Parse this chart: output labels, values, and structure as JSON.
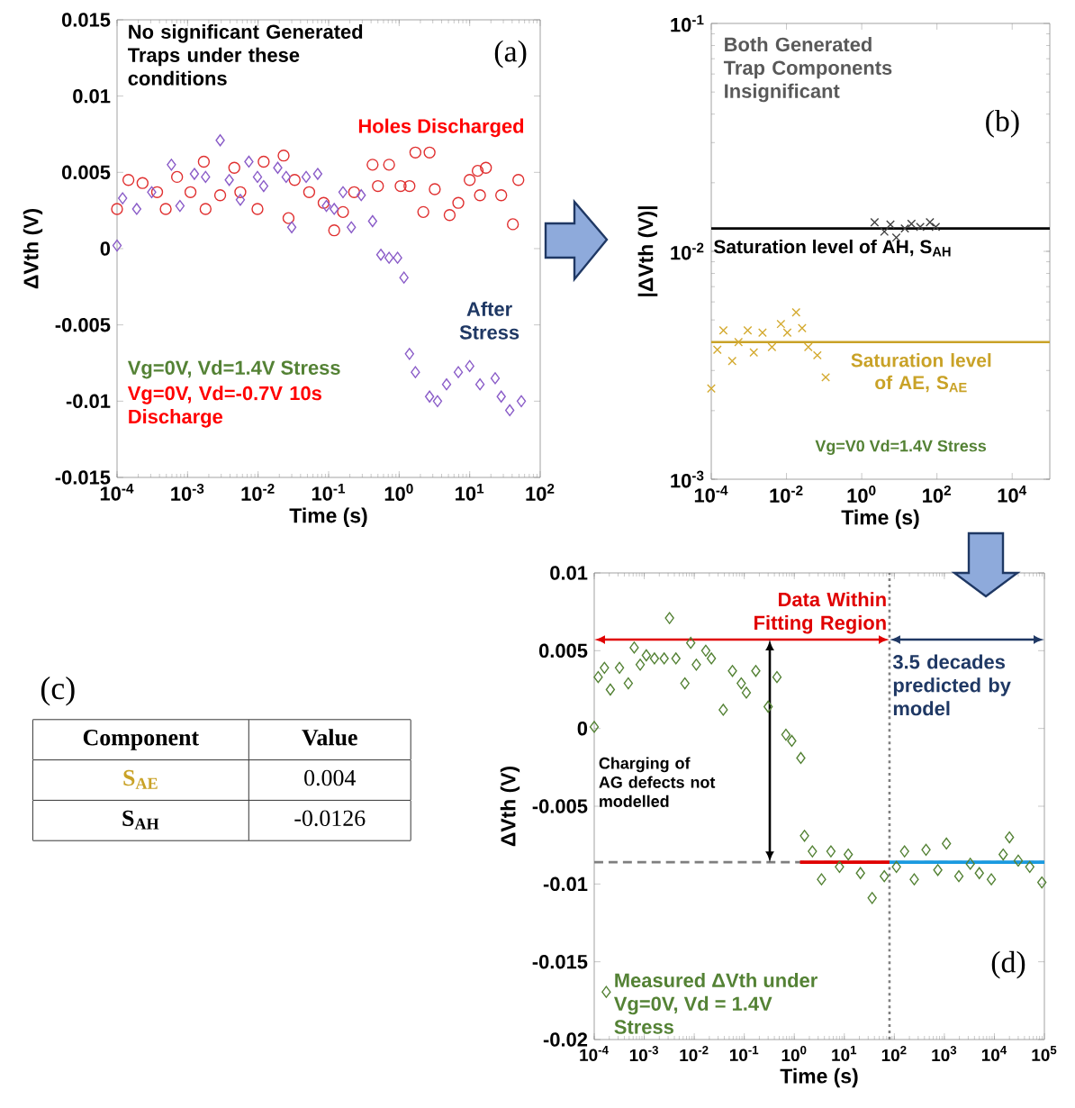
{
  "chart_data": [
    {
      "type": "scatter",
      "xlabel": "Time (s)",
      "ylabel": "ΔVth (V)",
      "log": "x",
      "xlim": [
        0.0001,
        100
      ],
      "xticks": [
        {
          "value": 0.0001,
          "label": "10$^{-4}$"
        },
        {
          "value": 0.001,
          "label": "10$^{-3}$"
        },
        {
          "value": 0.01,
          "label": "10$^{-2}$"
        },
        {
          "value": 0.1,
          "label": "10$^{-1}$"
        },
        {
          "value": 1,
          "label": "10$^{0}$"
        },
        {
          "value": 10,
          "label": "10$^{1}$"
        },
        {
          "value": 100,
          "label": "10$^{2}$"
        }
      ],
      "ylim": [
        -0.015,
        0.015
      ],
      "yticks": [
        -0.015,
        -0.01,
        -0.005,
        0,
        0.005,
        0.01,
        0.015
      ],
      "series": [
        {
          "name": "Holes Discharged",
          "color": "#e03030",
          "marker": "circle",
          "x": [
            0.0001,
            0.000145,
            0.00023,
            0.00037,
            0.00049,
            0.00071,
            0.0011,
            0.0017,
            0.0018,
            0.0029,
            0.0046,
            0.0056,
            0.0098,
            0.012,
            0.023,
            0.027,
            0.033,
            0.053,
            0.085,
            0.12,
            0.16,
            0.23,
            0.42,
            0.5,
            0.72,
            1.05,
            1.4,
            1.7,
            2.2,
            2.7,
            3.2,
            5.2,
            6.9,
            10,
            13,
            14,
            17,
            28,
            41,
            49
          ],
          "values": [
            0.0026,
            0.0045,
            0.0043,
            0.0037,
            0.0026,
            0.0047,
            0.0037,
            0.0057,
            0.0026,
            0.0035,
            0.0053,
            0.0037,
            0.0026,
            0.0057,
            0.0061,
            0.002,
            0.0045,
            0.0037,
            0.003,
            0.0012,
            0.0024,
            0.0037,
            0.0055,
            0.0041,
            0.0055,
            0.0041,
            0.0041,
            0.0063,
            0.0024,
            0.0063,
            0.0039,
            0.0022,
            0.003,
            0.0045,
            0.0051,
            0.0035,
            0.0053,
            0.0035,
            0.0016,
            0.0045
          ]
        },
        {
          "name": "After Stress",
          "color": "#8a5cc8",
          "marker": "diamond",
          "x": [
            0.0001,
            0.00012,
            0.00019,
            0.00031,
            0.00059,
            0.00078,
            0.00125,
            0.0018,
            0.0029,
            0.0039,
            0.0056,
            0.0074,
            0.0098,
            0.012,
            0.019,
            0.025,
            0.03,
            0.048,
            0.07,
            0.093,
            0.12,
            0.16,
            0.21,
            0.29,
            0.42,
            0.55,
            0.72,
            0.95,
            1.17,
            1.4,
            1.7,
            2.7,
            3.5,
            4.7,
            6.9,
            10,
            14,
            23,
            28,
            37,
            54
          ],
          "values": [
            0.0002,
            0.0033,
            0.0026,
            0.0037,
            0.0055,
            0.0028,
            0.0049,
            0.0047,
            0.0071,
            0.0045,
            0.0032,
            0.0057,
            0.0047,
            0.0041,
            0.0053,
            0.0047,
            0.0014,
            0.0047,
            0.0049,
            0.0028,
            0.0026,
            0.0037,
            0.0014,
            0.0035,
            0.0018,
            -0.0004,
            -0.0006,
            -0.0006,
            -0.0019,
            -0.0069,
            -0.0081,
            -0.0097,
            -0.01,
            -0.0089,
            -0.0081,
            -0.0077,
            -0.0089,
            -0.0085,
            -0.0097,
            -0.0106,
            -0.01
          ]
        }
      ],
      "annotations": [
        "(a)",
        "No significant Generated Traps under these conditions",
        "Vg=0V, Vd=1.4V Stress",
        "Vg=0V, Vd=-0.7V 10s Discharge"
      ]
    },
    {
      "type": "scatter",
      "xlabel": "Time (s)",
      "ylabel": "|ΔVth (V)|",
      "log": "xy",
      "xlim": [
        0.0001,
        100000
      ],
      "xticks": [
        {
          "value": 0.0001,
          "label": "10$^{-4}$"
        },
        {
          "value": 0.01,
          "label": "10$^{-2}$"
        },
        {
          "value": 1,
          "label": "10$^{0}$"
        },
        {
          "value": 100,
          "label": "10$^{2}$"
        },
        {
          "value": 10000,
          "label": "10$^{4}$"
        }
      ],
      "ylim": [
        0.001,
        0.1
      ],
      "yticks": [
        {
          "value": 0.001,
          "label": "10$^{-3}$"
        },
        {
          "value": 0.01,
          "label": "10$^{-2}$"
        },
        {
          "value": 0.1,
          "label": "10$^{-1}$"
        }
      ],
      "series": [
        {
          "color": "#d4aa30",
          "marker": "cross",
          "x": [
            0.0001,
            0.000145,
            0.00021,
            0.00036,
            0.00053,
            0.00093,
            0.00135,
            0.0023,
            0.0041,
            0.0071,
            0.0105,
            0.018,
            0.026,
            0.038,
            0.066,
            0.11
          ],
          "values": [
            0.0025,
            0.0037,
            0.0045,
            0.0033,
            0.004,
            0.0045,
            0.0036,
            0.0044,
            0.0038,
            0.0048,
            0.0044,
            0.0054,
            0.0046,
            0.0038,
            0.0035,
            0.0028
          ]
        },
        {
          "color": "#404040",
          "marker": "cross",
          "x": [
            2.2,
            4,
            5.8,
            8.3,
            14,
            21,
            36,
            65,
            93
          ],
          "values": [
            0.0134,
            0.0122,
            0.0131,
            0.0115,
            0.0126,
            0.0132,
            0.0128,
            0.0134,
            0.0128
          ]
        }
      ],
      "ref_lines": [
        {
          "axis": "y",
          "value": 0.0126,
          "label": "Saturation level of AH, S$_{AH}$",
          "color": "#000000"
        },
        {
          "axis": "y",
          "value": 0.004,
          "label": "Saturation level of AE, S$_{AE}$",
          "color": "#c9a227"
        }
      ],
      "annotations": [
        "Both Generated Trap Components Insignificant",
        "(b)",
        "Vg=V0 Vd=1.4V Stress"
      ]
    },
    {
      "type": "other",
      "title": "(c)",
      "annotations": [
        "Component",
        "Value",
        "S$_{AE}$",
        "0.004",
        "S$_{AH}$",
        "-0.0126"
      ]
    },
    {
      "type": "scatter",
      "xlabel": "Time (s)",
      "ylabel": "ΔVth (V)",
      "log": "x",
      "xlim": [
        0.0001,
        100000
      ],
      "xticks": [
        {
          "value": 0.0001,
          "label": "10$^{-4}$"
        },
        {
          "value": 0.001,
          "label": "10$^{-3}$"
        },
        {
          "value": 0.01,
          "label": "10$^{-2}$"
        },
        {
          "value": 0.1,
          "label": "10$^{-1}$"
        },
        {
          "value": 1,
          "label": "10$^{0}$"
        },
        {
          "value": 10,
          "label": "10$^{1}$"
        },
        {
          "value": 100,
          "label": "10$^{2}$"
        },
        {
          "value": 1000,
          "label": "10$^{3}$"
        },
        {
          "value": 10000,
          "label": "10$^{4}$"
        },
        {
          "value": 100000,
          "label": "10$^{5}$"
        }
      ],
      "ylim": [
        -0.02,
        0.01
      ],
      "yticks": [
        -0.02,
        -0.015,
        -0.01,
        -0.005,
        0,
        0.005,
        0.01
      ],
      "legend": "bottom left",
      "series": [
        {
          "name": "Measured ΔVth under Vg=0V, Vd = 1.4V Stress",
          "color": "#548235",
          "marker": "diamond",
          "x": [
            0.0001,
            0.00012,
            0.00016,
            0.00021,
            0.00032,
            0.00048,
            0.00063,
            0.00083,
            0.0011,
            0.0016,
            0.0025,
            0.0032,
            0.0043,
            0.0065,
            0.0085,
            0.011,
            0.017,
            0.022,
            0.038,
            0.058,
            0.087,
            0.11,
            0.17,
            0.3,
            0.45,
            0.68,
            0.89,
            1.35,
            1.6,
            2.3,
            3.5,
            5.4,
            8,
            12,
            21,
            36,
            63,
            110,
            160,
            250,
            430,
            740,
            1100,
            1950,
            3300,
            5000,
            8700,
            15000,
            20000,
            30000,
            51000,
            89000
          ],
          "values": [
            0.0001,
            0.0033,
            0.0039,
            0.0025,
            0.0039,
            0.0029,
            0.0052,
            0.0041,
            0.0047,
            0.0045,
            0.0045,
            0.0071,
            0.0045,
            0.0029,
            0.0055,
            0.0041,
            0.005,
            0.0045,
            0.0012,
            0.0037,
            0.0029,
            0.0023,
            0.0037,
            0.0014,
            0.0033,
            -0.0004,
            -0.0008,
            -0.0019,
            -0.0069,
            -0.0079,
            -0.0097,
            -0.0079,
            -0.0089,
            -0.0081,
            -0.0093,
            -0.0109,
            -0.0095,
            -0.0089,
            -0.0079,
            -0.0097,
            -0.0078,
            -0.0091,
            -0.0074,
            -0.0095,
            -0.0087,
            -0.0093,
            -0.0097,
            -0.0081,
            -0.007,
            -0.0085,
            -0.0089,
            -0.0099
          ]
        },
        {
          "type": "line",
          "color": "#e00000",
          "x": [
            1.3,
            80
          ],
          "values": [
            -0.0086,
            -0.0086
          ]
        },
        {
          "type": "line",
          "color": "#1a9ae0",
          "x": [
            80,
            100000
          ],
          "values": [
            -0.0086,
            -0.0086
          ]
        }
      ],
      "ref_lines": [
        {
          "axis": "y",
          "value": -0.0086,
          "color": "#7f7f7f",
          "line_style": "dashed"
        },
        {
          "axis": "x",
          "value": 80,
          "color": "#7f7f7f",
          "line_style": "dotted"
        }
      ],
      "annotations": [
        "(d)",
        "Data Within Fitting Region",
        "3.5 decades predicted by model",
        "Charging of AG defects not modelled"
      ]
    }
  ]
}
